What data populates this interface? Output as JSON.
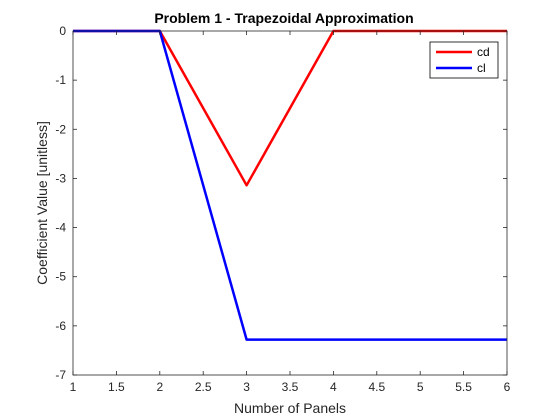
{
  "chart_data": {
    "type": "line",
    "title": "Problem 1 - Trapezoidal Approximation",
    "xlabel": "Number of Panels",
    "ylabel": "Coefficient Value [unitless]",
    "xlim": [
      1,
      6
    ],
    "ylim": [
      -7,
      0
    ],
    "grid": false,
    "legend_placement": "top-right",
    "x_ticks": [
      "1",
      "1.5",
      "2",
      "2.5",
      "3",
      "3.5",
      "4",
      "4.5",
      "5",
      "5.5",
      "6"
    ],
    "y_ticks": [
      "0",
      "-1",
      "-2",
      "-3",
      "-4",
      "-5",
      "-6",
      "-7"
    ],
    "series": [
      {
        "name": "cd",
        "color": "#ff0000",
        "x": [
          1,
          2,
          3,
          4,
          5,
          6
        ],
        "y": [
          0,
          0,
          -3.14,
          0,
          0,
          0
        ]
      },
      {
        "name": "cl",
        "color": "#0000ff",
        "x": [
          1,
          2,
          3,
          4,
          5,
          6
        ],
        "y": [
          0,
          0,
          -6.28,
          -6.28,
          -6.28,
          -6.28
        ]
      }
    ]
  }
}
